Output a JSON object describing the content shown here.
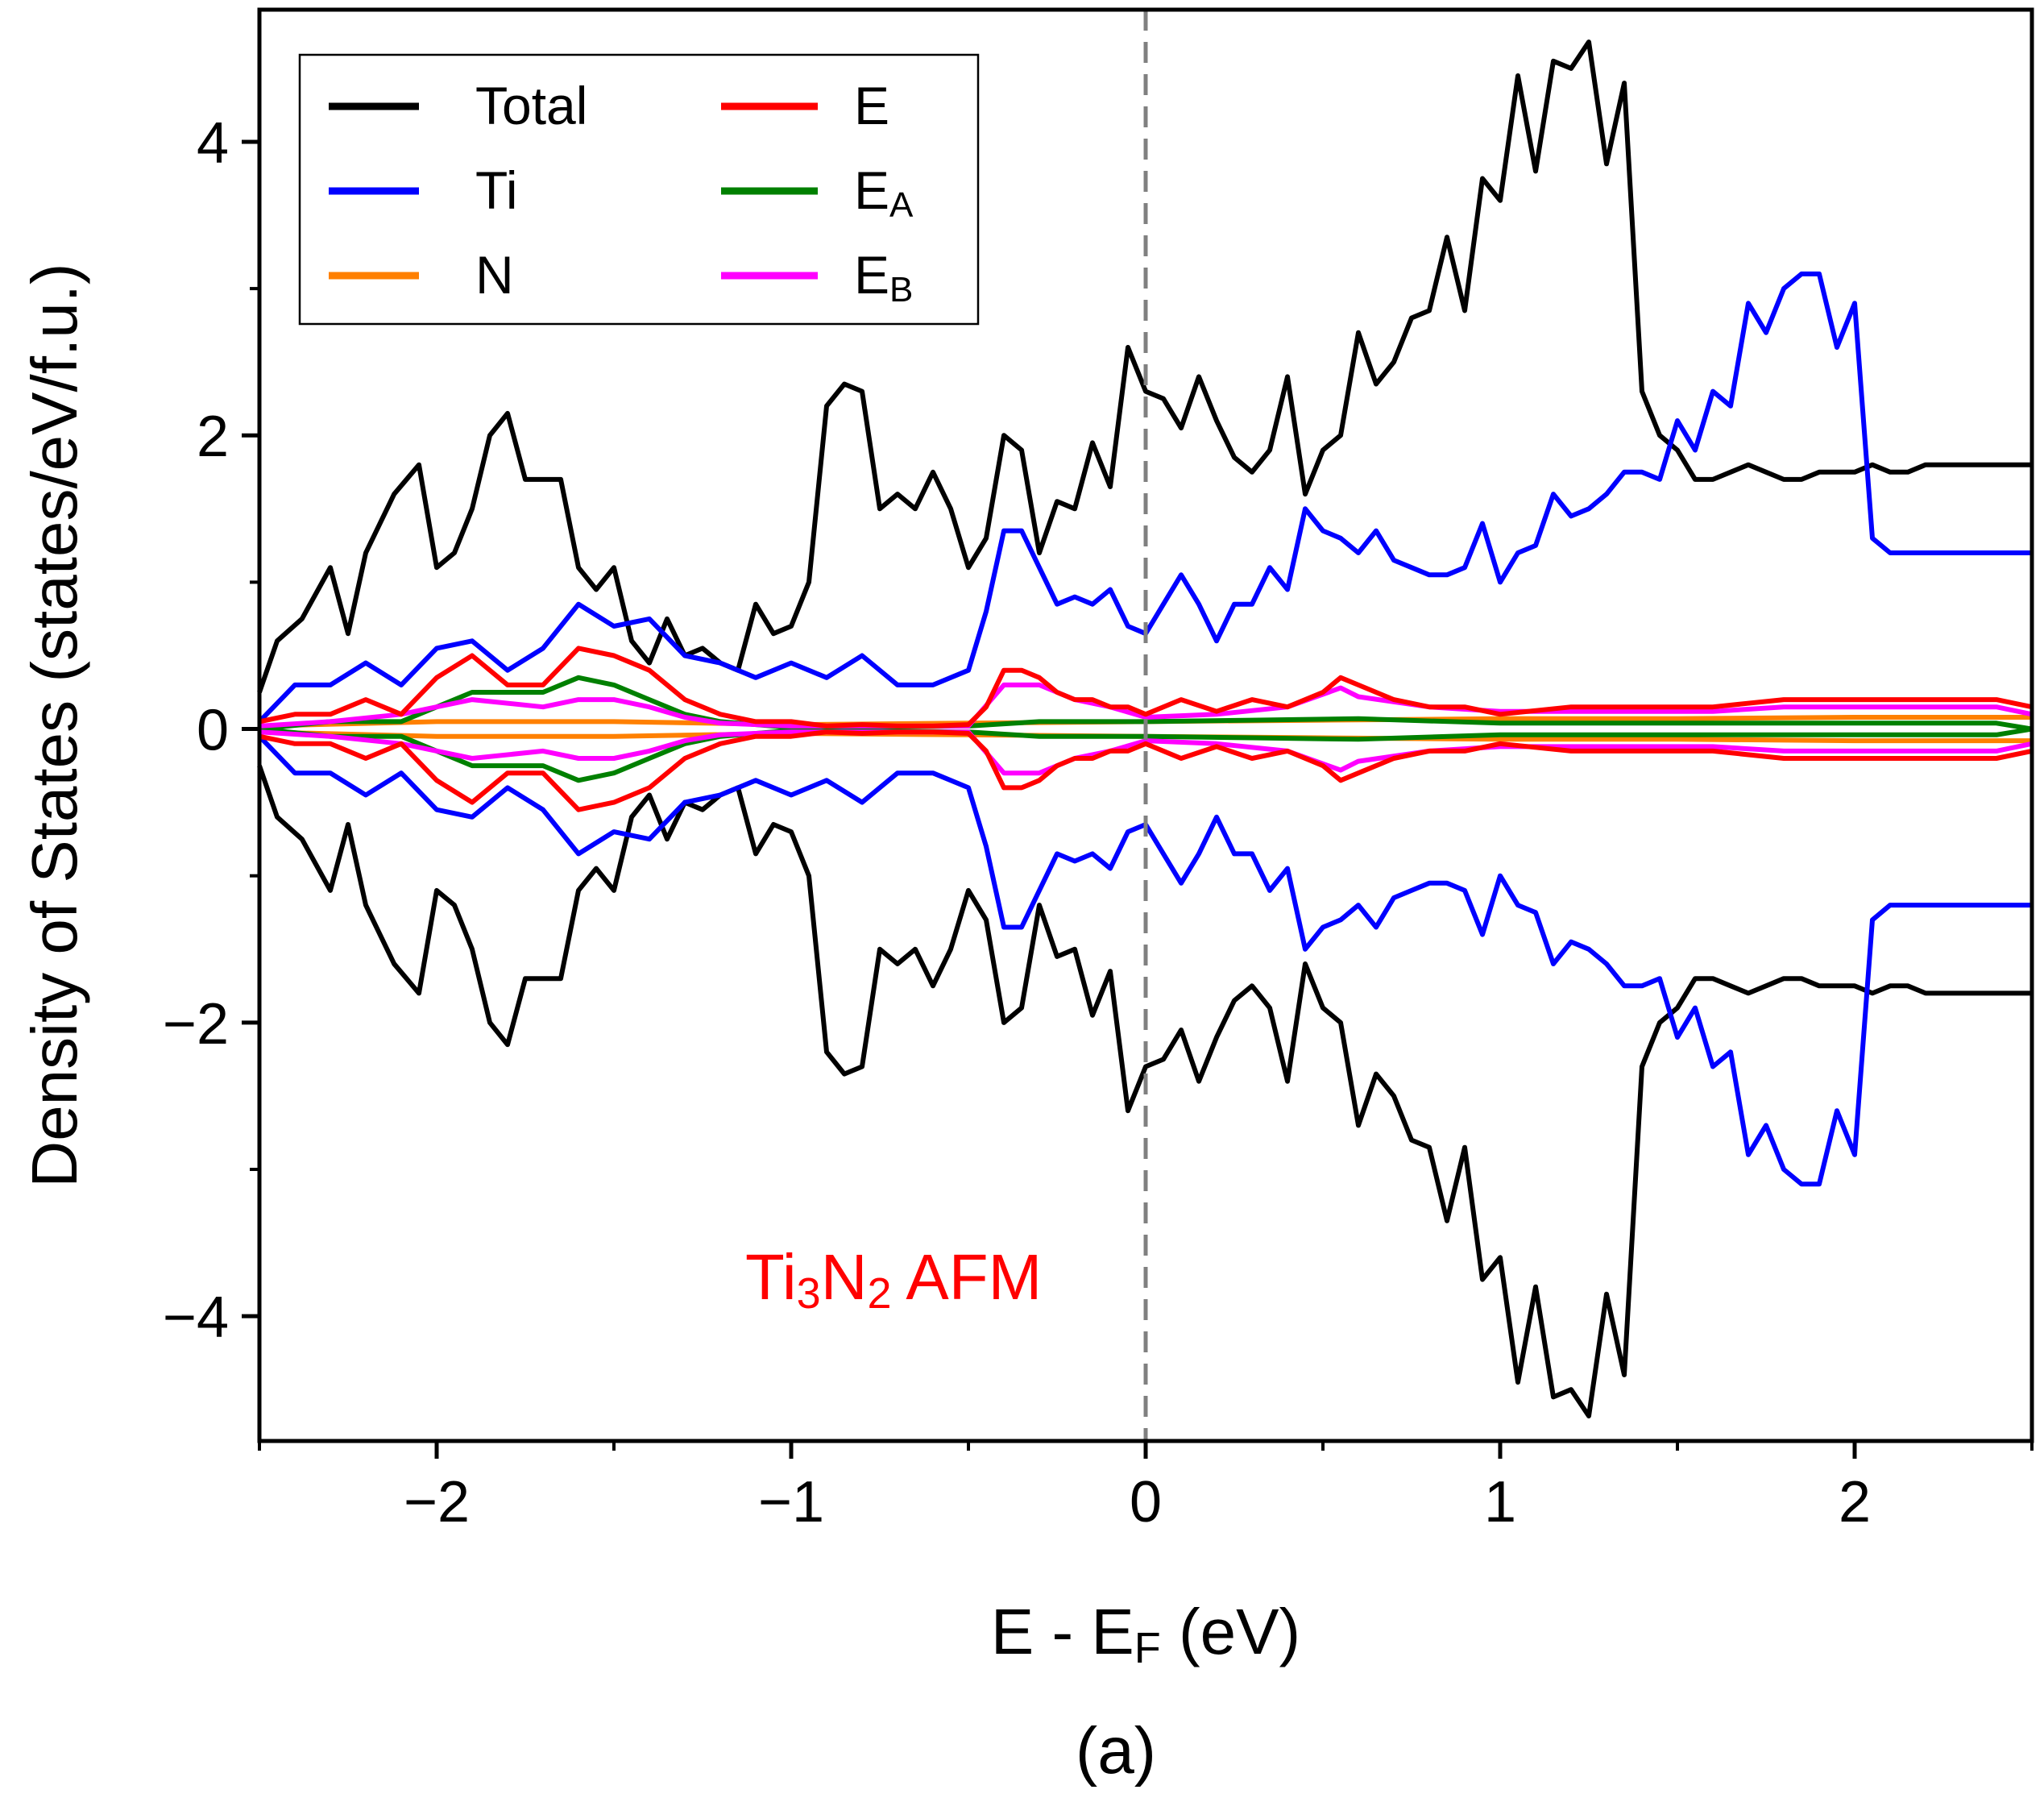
{
  "chart_data": {
    "type": "line",
    "title": "",
    "xlabel": {
      "main": "E - E",
      "sub": "F",
      "tail": " (eV)"
    },
    "ylabel": "Density of States (states/eV/f.u.)",
    "xlim": [
      -2.5,
      2.5
    ],
    "ylim": [
      -4.85,
      4.9
    ],
    "xticks": [
      -2,
      -1,
      0,
      1,
      2
    ],
    "xtick_labels": [
      "−2",
      "−1",
      "0",
      "1",
      "2"
    ],
    "yticks": [
      -4,
      -2,
      0,
      2,
      4
    ],
    "ytick_labels": [
      "−4",
      "−2",
      "0",
      "2",
      "4"
    ],
    "fermi_level": 0,
    "annotation": {
      "parts": [
        "Ti",
        "3",
        "N",
        "2",
        " AFM"
      ],
      "color": "#ff0000"
    },
    "caption": "(a)",
    "legend_position": "top-left",
    "mirror_spin_down": true,
    "series": [
      {
        "name": "Total",
        "color": "#000000",
        "x": [
          -2.5,
          -2.45,
          -2.38,
          -2.3,
          -2.25,
          -2.2,
          -2.12,
          -2.05,
          -2.0,
          -1.95,
          -1.9,
          -1.85,
          -1.8,
          -1.75,
          -1.65,
          -1.6,
          -1.55,
          -1.5,
          -1.45,
          -1.4,
          -1.35,
          -1.3,
          -1.25,
          -1.2,
          -1.15,
          -1.1,
          -1.05,
          -1.0,
          -0.95,
          -0.9,
          -0.85,
          -0.8,
          -0.75,
          -0.7,
          -0.65,
          -0.6,
          -0.55,
          -0.5,
          -0.45,
          -0.4,
          -0.35,
          -0.3,
          -0.25,
          -0.2,
          -0.15,
          -0.1,
          -0.05,
          0.0,
          0.05,
          0.1,
          0.15,
          0.2,
          0.25,
          0.3,
          0.35,
          0.4,
          0.45,
          0.5,
          0.55,
          0.6,
          0.65,
          0.7,
          0.75,
          0.8,
          0.85,
          0.9,
          0.95,
          1.0,
          1.05,
          1.1,
          1.15,
          1.2,
          1.25,
          1.3,
          1.35,
          1.4,
          1.45,
          1.5,
          1.55,
          1.6,
          1.65,
          1.7,
          1.75,
          1.8,
          1.85,
          1.9,
          1.95,
          2.0,
          2.05,
          2.1,
          2.15,
          2.2,
          2.25,
          2.3,
          2.35,
          2.4,
          2.45,
          2.5
        ],
        "y": [
          0.25,
          0.6,
          0.75,
          1.1,
          0.65,
          1.2,
          1.6,
          1.8,
          1.1,
          1.2,
          1.5,
          2.0,
          2.15,
          1.7,
          1.7,
          1.1,
          0.95,
          1.1,
          0.6,
          0.45,
          0.75,
          0.5,
          0.55,
          0.45,
          0.4,
          0.85,
          0.65,
          0.7,
          1.0,
          2.2,
          2.35,
          2.3,
          1.5,
          1.6,
          1.5,
          1.75,
          1.5,
          1.1,
          1.3,
          2.0,
          1.9,
          1.2,
          1.55,
          1.5,
          1.95,
          1.65,
          2.6,
          2.3,
          2.25,
          2.05,
          2.4,
          2.1,
          1.85,
          1.75,
          1.9,
          2.4,
          1.6,
          1.9,
          2.0,
          2.7,
          2.35,
          2.5,
          2.8,
          2.85,
          3.35,
          2.85,
          3.75,
          3.6,
          4.45,
          3.8,
          4.55,
          4.5,
          4.68,
          3.85,
          4.4,
          2.3,
          2.0,
          1.9,
          1.7,
          1.7,
          1.75,
          1.8,
          1.75,
          1.7,
          1.7,
          1.75,
          1.75,
          1.75,
          1.8,
          1.75,
          1.75,
          1.8,
          1.8,
          1.8,
          1.8,
          1.8,
          1.8,
          1.8
        ]
      },
      {
        "name": "Ti",
        "color": "#0000ff",
        "x": [
          -2.5,
          -2.4,
          -2.3,
          -2.2,
          -2.1,
          -2.0,
          -1.9,
          -1.8,
          -1.7,
          -1.6,
          -1.5,
          -1.4,
          -1.3,
          -1.2,
          -1.1,
          -1.0,
          -0.9,
          -0.8,
          -0.7,
          -0.6,
          -0.5,
          -0.45,
          -0.4,
          -0.35,
          -0.3,
          -0.25,
          -0.2,
          -0.15,
          -0.1,
          -0.05,
          0.0,
          0.05,
          0.1,
          0.15,
          0.2,
          0.25,
          0.3,
          0.35,
          0.4,
          0.45,
          0.5,
          0.55,
          0.6,
          0.65,
          0.7,
          0.75,
          0.8,
          0.85,
          0.9,
          0.95,
          1.0,
          1.05,
          1.1,
          1.15,
          1.2,
          1.25,
          1.3,
          1.35,
          1.4,
          1.45,
          1.5,
          1.55,
          1.6,
          1.65,
          1.7,
          1.75,
          1.8,
          1.85,
          1.9,
          1.95,
          2.0,
          2.05,
          2.1,
          2.15,
          2.2,
          2.25,
          2.3,
          2.35,
          2.4,
          2.45,
          2.5
        ],
        "y": [
          0.05,
          0.3,
          0.3,
          0.45,
          0.3,
          0.55,
          0.6,
          0.4,
          0.55,
          0.85,
          0.7,
          0.75,
          0.5,
          0.45,
          0.35,
          0.45,
          0.35,
          0.5,
          0.3,
          0.3,
          0.4,
          0.8,
          1.35,
          1.35,
          1.1,
          0.85,
          0.9,
          0.85,
          0.95,
          0.7,
          0.65,
          0.85,
          1.05,
          0.85,
          0.6,
          0.85,
          0.85,
          1.1,
          0.95,
          1.5,
          1.35,
          1.3,
          1.2,
          1.35,
          1.15,
          1.1,
          1.05,
          1.05,
          1.1,
          1.4,
          1.0,
          1.2,
          1.25,
          1.6,
          1.45,
          1.5,
          1.6,
          1.75,
          1.75,
          1.7,
          2.1,
          1.9,
          2.3,
          2.2,
          2.9,
          2.7,
          3.0,
          3.1,
          3.1,
          2.6,
          2.9,
          1.3,
          1.2,
          1.2,
          1.2,
          1.2,
          1.2,
          1.2,
          1.2,
          1.2,
          1.2
        ]
      },
      {
        "name": "N",
        "color": "#ff8000",
        "x": [
          -2.5,
          -2.0,
          -1.5,
          -1.0,
          -0.5,
          0.0,
          0.5,
          1.0,
          1.5,
          2.0,
          2.5
        ],
        "y": [
          0.02,
          0.05,
          0.05,
          0.03,
          0.04,
          0.05,
          0.06,
          0.07,
          0.07,
          0.08,
          0.08
        ]
      },
      {
        "name": "E",
        "color": "#ff0000",
        "x": [
          -2.5,
          -2.4,
          -2.3,
          -2.2,
          -2.1,
          -2.0,
          -1.9,
          -1.8,
          -1.7,
          -1.6,
          -1.5,
          -1.4,
          -1.3,
          -1.2,
          -1.1,
          -1.0,
          -0.9,
          -0.8,
          -0.7,
          -0.6,
          -0.5,
          -0.45,
          -0.4,
          -0.35,
          -0.3,
          -0.25,
          -0.2,
          -0.15,
          -0.1,
          -0.05,
          0.0,
          0.1,
          0.2,
          0.3,
          0.4,
          0.5,
          0.55,
          0.6,
          0.7,
          0.8,
          0.9,
          1.0,
          1.2,
          1.4,
          1.6,
          1.8,
          2.0,
          2.2,
          2.4,
          2.5
        ],
        "y": [
          0.05,
          0.1,
          0.1,
          0.2,
          0.1,
          0.35,
          0.5,
          0.3,
          0.3,
          0.55,
          0.5,
          0.4,
          0.2,
          0.1,
          0.05,
          0.05,
          0.02,
          0.03,
          0.02,
          0.02,
          0.03,
          0.15,
          0.4,
          0.4,
          0.35,
          0.25,
          0.2,
          0.2,
          0.15,
          0.15,
          0.1,
          0.2,
          0.12,
          0.2,
          0.15,
          0.25,
          0.35,
          0.3,
          0.2,
          0.15,
          0.15,
          0.1,
          0.15,
          0.15,
          0.15,
          0.2,
          0.2,
          0.2,
          0.2,
          0.15
        ]
      },
      {
        "name": "E_A",
        "label_main": "E",
        "label_sub": "A",
        "color": "#008000",
        "x": [
          -2.5,
          -2.3,
          -2.1,
          -1.9,
          -1.7,
          -1.6,
          -1.5,
          -1.4,
          -1.3,
          -1.2,
          -1.0,
          -0.5,
          -0.3,
          0.0,
          0.3,
          0.6,
          1.0,
          1.5,
          2.0,
          2.4,
          2.5
        ],
        "y": [
          0.0,
          0.05,
          0.05,
          0.25,
          0.25,
          0.35,
          0.3,
          0.2,
          0.1,
          0.05,
          0.01,
          0.02,
          0.05,
          0.05,
          0.06,
          0.07,
          0.04,
          0.04,
          0.04,
          0.04,
          0.0
        ]
      },
      {
        "name": "E_B",
        "label_main": "E",
        "label_sub": "B",
        "color": "#ff00ff",
        "x": [
          -2.5,
          -2.3,
          -2.1,
          -1.9,
          -1.7,
          -1.6,
          -1.5,
          -1.4,
          -1.3,
          -1.2,
          -1.0,
          -0.5,
          -0.4,
          -0.3,
          -0.2,
          -0.1,
          0.0,
          0.2,
          0.4,
          0.55,
          0.6,
          0.8,
          1.0,
          1.2,
          1.4,
          1.6,
          1.8,
          2.0,
          2.2,
          2.4,
          2.5
        ],
        "y": [
          0.02,
          0.05,
          0.1,
          0.2,
          0.15,
          0.2,
          0.2,
          0.15,
          0.08,
          0.04,
          0.02,
          0.02,
          0.3,
          0.3,
          0.2,
          0.15,
          0.08,
          0.1,
          0.15,
          0.28,
          0.22,
          0.15,
          0.12,
          0.12,
          0.12,
          0.12,
          0.15,
          0.15,
          0.15,
          0.15,
          0.1
        ]
      }
    ]
  }
}
